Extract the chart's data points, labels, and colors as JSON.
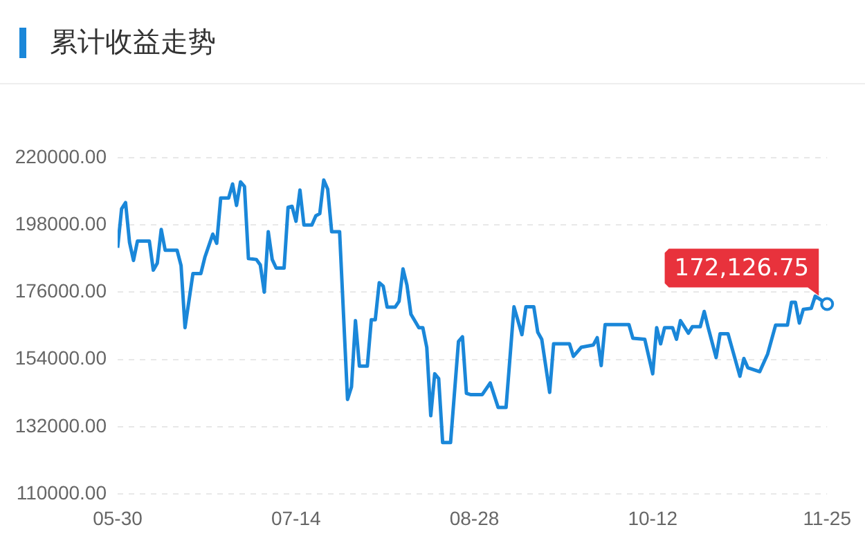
{
  "chart_data": {
    "type": "line",
    "title": "累计收益走势",
    "x": [
      "--05-30",
      "--05-31",
      "--06-01",
      "--06-02",
      "--06-03",
      "--06-04",
      "--06-07",
      "--06-08",
      "--06-09",
      "--06-10",
      "--06-11",
      "--06-14",
      "--06-15",
      "--06-16",
      "--06-18",
      "--06-20",
      "--06-21",
      "--06-23",
      "--06-24",
      "--06-25",
      "--06-27",
      "--06-28",
      "--06-29",
      "--06-30",
      "--07-01",
      "--07-02",
      "--07-04",
      "--07-05",
      "--07-06",
      "--07-07",
      "--07-08",
      "--07-09",
      "--07-11",
      "--07-12",
      "--07-13",
      "--07-14",
      "--07-15",
      "--07-16",
      "--07-18",
      "--07-19",
      "--07-20",
      "--07-21",
      "--07-22",
      "--07-23",
      "--07-25",
      "--07-27",
      "--07-28",
      "--07-29",
      "--07-30",
      "--08-01",
      "--08-02",
      "--08-03",
      "--08-04",
      "--08-05",
      "--08-06",
      "--08-08",
      "--08-09",
      "--08-10",
      "--08-11",
      "--08-12",
      "--08-14",
      "--08-15",
      "--08-16",
      "--08-17",
      "--08-18",
      "--08-19",
      "--08-20",
      "--08-22",
      "--08-24",
      "--08-25",
      "--08-26",
      "--08-27",
      "--08-30",
      "--09-01",
      "--09-03",
      "--09-05",
      "--09-07",
      "--09-08",
      "--09-09",
      "--09-10",
      "--09-12",
      "--09-13",
      "--09-14",
      "--09-16",
      "--09-17",
      "--09-21",
      "--09-22",
      "--09-24",
      "--09-27",
      "--09-28",
      "--09-29",
      "--09-30",
      "--10-06",
      "--10-07",
      "--10-10",
      "--10-12",
      "--10-13",
      "--10-14",
      "--10-15",
      "--10-17",
      "--10-18",
      "--10-19",
      "--10-21",
      "--10-22",
      "--10-24",
      "--10-25",
      "--10-26",
      "--10-28",
      "--10-29",
      "--10-31",
      "--11-03",
      "--11-04",
      "--11-05",
      "--11-08",
      "--11-10",
      "--11-12",
      "--11-15",
      "--11-16",
      "--11-17",
      "--11-18",
      "--11-19",
      "--11-21",
      "--11-22",
      "--11-25"
    ],
    "series": [
      {
        "color": "#1a87d9",
        "values": [
          190500,
          203300,
          205300,
          192300,
          186400,
          192700,
          192700,
          183200,
          185500,
          196500,
          189700,
          189700,
          184700,
          164400,
          182100,
          182100,
          187400,
          195000,
          192000,
          206800,
          206800,
          211400,
          204400,
          212100,
          210600,
          187000,
          186700,
          184900,
          176000,
          195800,
          186700,
          183900,
          183900,
          203800,
          204100,
          199200,
          209400,
          198000,
          198000,
          201000,
          201700,
          212700,
          209700,
          195800,
          195800,
          140900,
          145000,
          166700,
          151800,
          151800,
          167000,
          167000,
          179100,
          178000,
          171100,
          171100,
          173000,
          183600,
          178300,
          168800,
          164400,
          164400,
          157900,
          135600,
          149300,
          147700,
          126800,
          126800,
          159900,
          161400,
          142900,
          142500,
          142500,
          146300,
          138300,
          138300,
          171200,
          166700,
          162100,
          171200,
          171200,
          162900,
          160600,
          143200,
          159100,
          159100,
          155000,
          158000,
          158700,
          161100,
          152000,
          165400,
          165400,
          160900,
          160600,
          149300,
          164400,
          159100,
          164400,
          164400,
          160600,
          166700,
          162600,
          164700,
          164700,
          169700,
          164400,
          154600,
          162400,
          162400,
          148500,
          154300,
          151300,
          150000,
          155800,
          165200,
          165200,
          172700,
          172700,
          165900,
          170400,
          170700,
          174700,
          172126.75
        ]
      }
    ],
    "xlim": [
      "--05-30",
      "--11-25"
    ],
    "xticks": [
      {
        "value": "--05-30",
        "label": "05-30"
      },
      {
        "value": "--07-14",
        "label": "07-14"
      },
      {
        "value": "--08-28",
        "label": "08-28"
      },
      {
        "value": "--10-12",
        "label": "10-12"
      },
      {
        "value": "--11-25",
        "label": "11-25"
      }
    ],
    "ylim": [
      110000,
      220000
    ],
    "yticks": [
      {
        "value": 110000,
        "label": "110000.00"
      },
      {
        "value": 132000,
        "label": "132000.00"
      },
      {
        "value": 154000,
        "label": "154000.00"
      },
      {
        "value": 176000,
        "label": "176000.00"
      },
      {
        "value": 198000,
        "label": "198000.00"
      },
      {
        "value": 220000,
        "label": "220000.00"
      }
    ],
    "annotations": [
      {
        "text": "172,126.75",
        "x": "--11-25",
        "y": 172126.75
      }
    ],
    "grid": "y",
    "legend": false,
    "marker": "none",
    "line_style": "solid"
  }
}
